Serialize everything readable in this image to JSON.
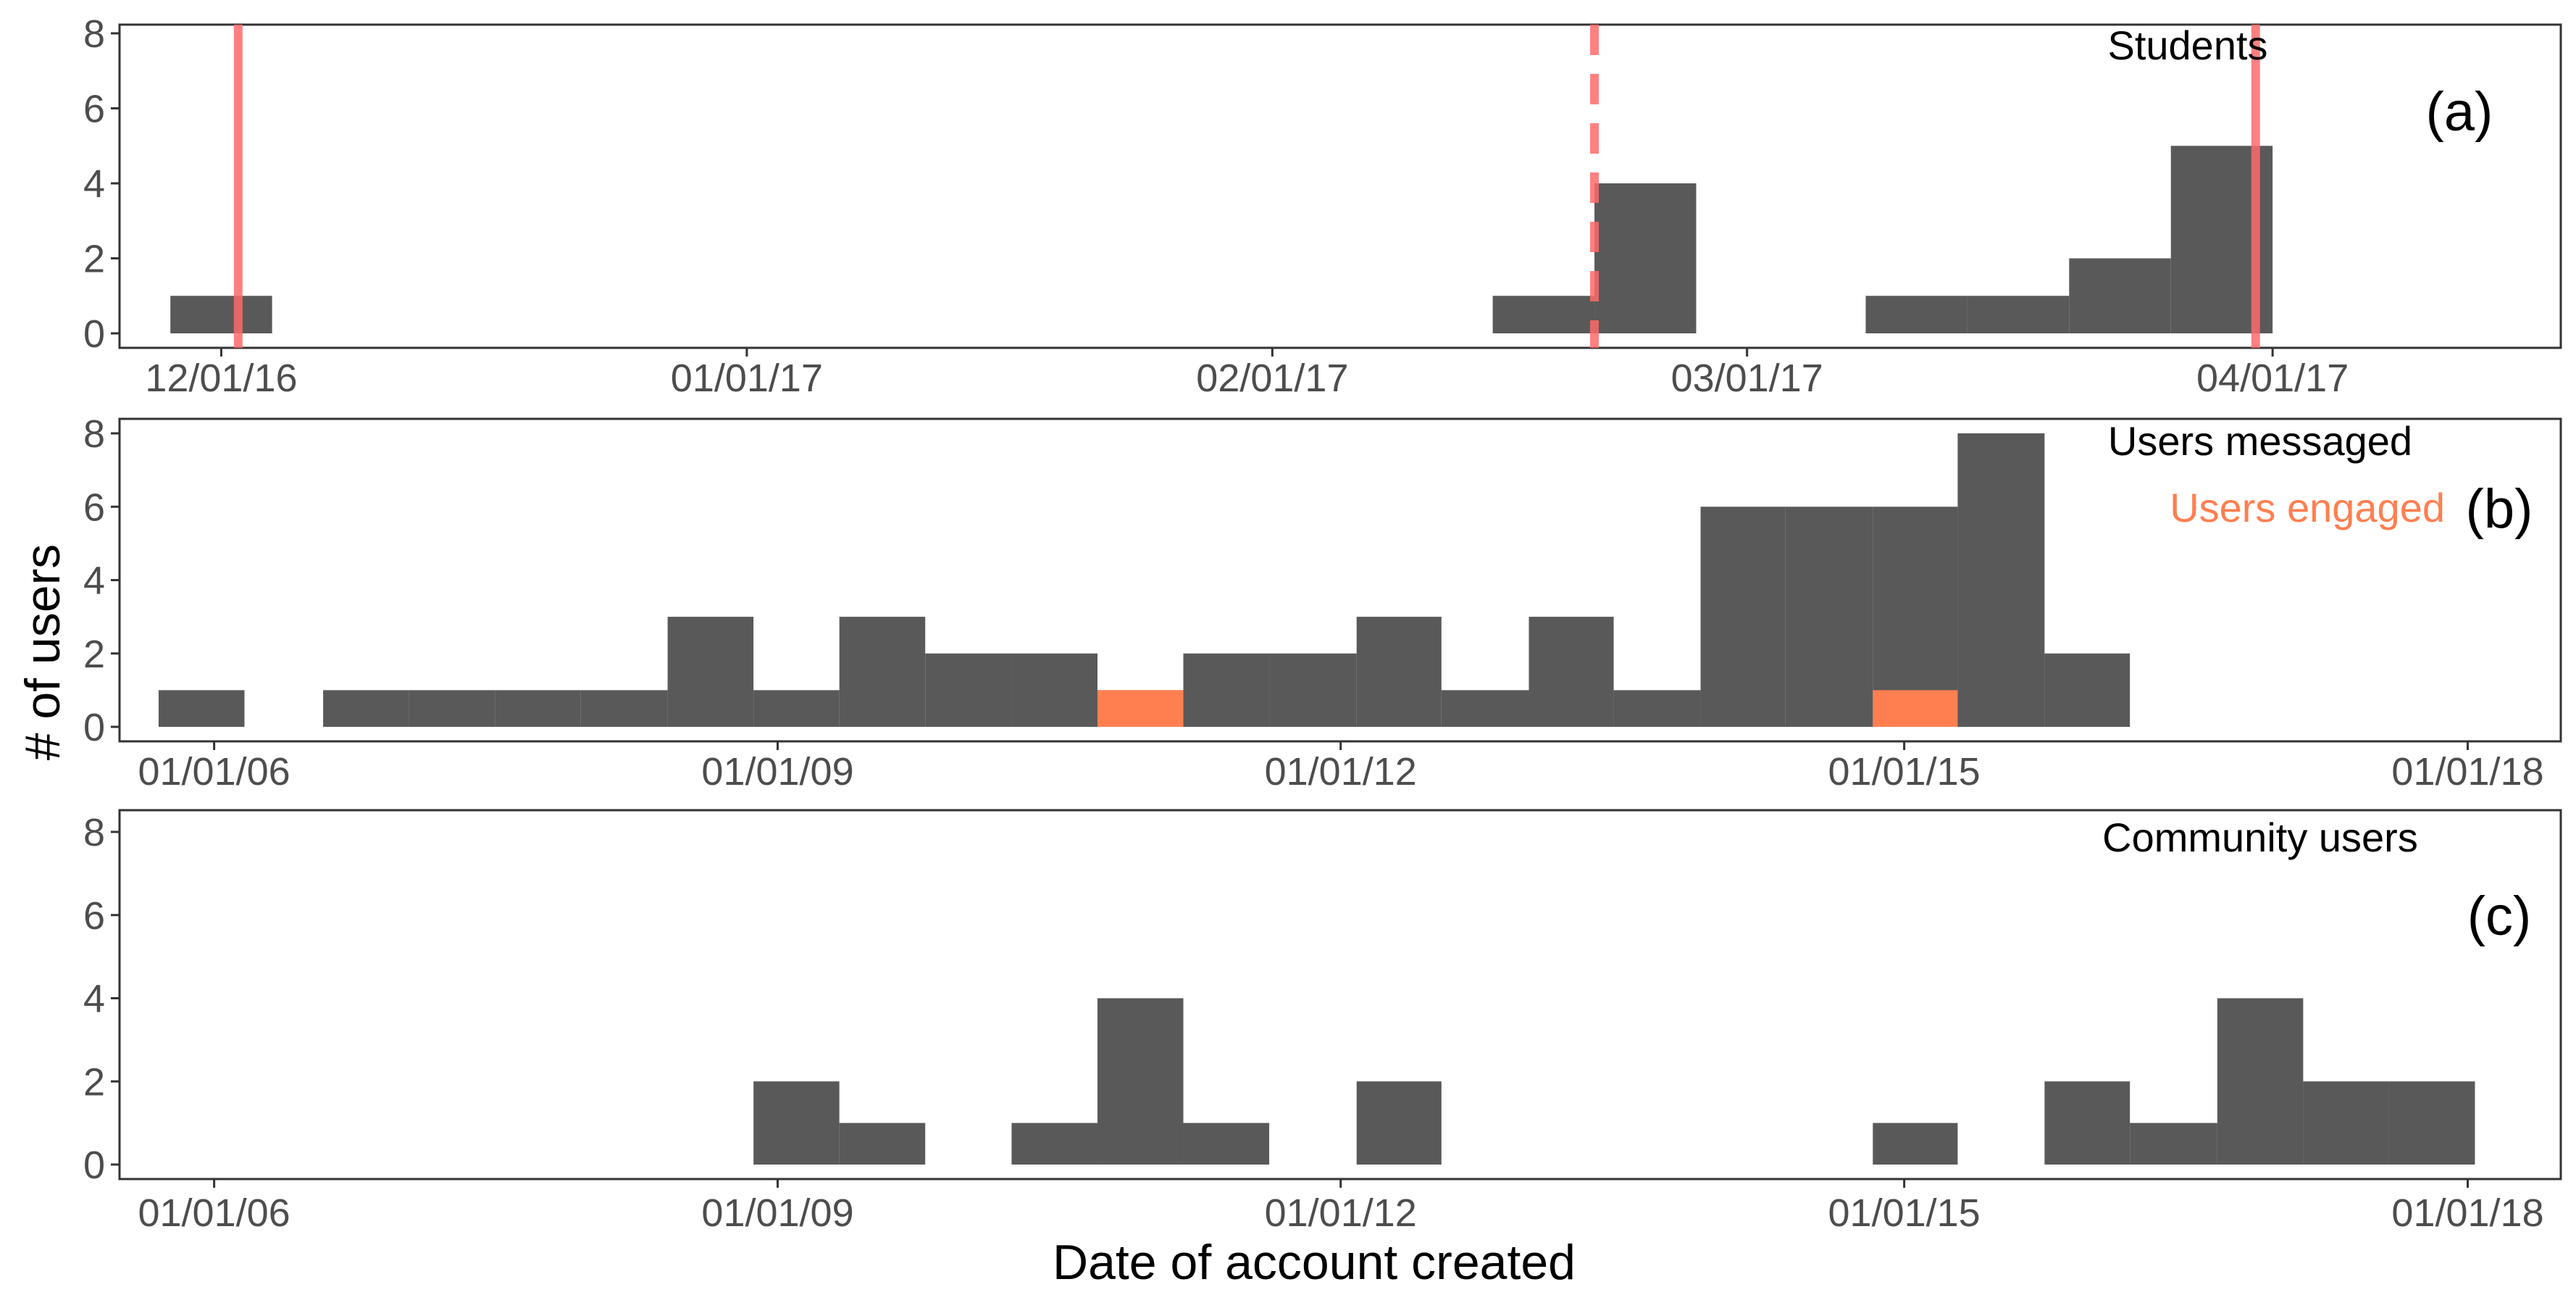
{
  "figure": {
    "ylabel": "# of users",
    "xlabel": "Date of account created"
  },
  "colors": {
    "bar": "#595959",
    "engaged": "#ff7f50",
    "vline": "#ff6a6a",
    "axis_text": "#4d4d4d",
    "frame": "#333333"
  },
  "chart_data": [
    {
      "type": "bar",
      "panel_tag": "(a)",
      "legend": [
        "Students"
      ],
      "x_axis": "date",
      "xlim": [
        "2016-11-25",
        "2017-04-18"
      ],
      "ylim": [
        0,
        8
      ],
      "y_ticks": [
        0,
        2,
        4,
        6,
        8
      ],
      "x_ticks": [
        {
          "date": "2016-12-01",
          "label": "12/01/16"
        },
        {
          "date": "2017-01-01",
          "label": "01/01/17"
        },
        {
          "date": "2017-02-01",
          "label": "02/01/17"
        },
        {
          "date": "2017-03-01",
          "label": "03/01/17"
        },
        {
          "date": "2017-04-01",
          "label": "04/01/17"
        }
      ],
      "series": [
        {
          "bins": [
            {
              "start": "2016-11-28",
              "end": "2016-12-04",
              "value": 1
            },
            {
              "start": "2017-02-14",
              "end": "2017-02-20",
              "value": 1
            },
            {
              "start": "2017-02-20",
              "end": "2017-02-26",
              "value": 4
            },
            {
              "start": "2017-03-08",
              "end": "2017-03-14",
              "value": 1
            },
            {
              "start": "2017-03-14",
              "end": "2017-03-20",
              "value": 1
            },
            {
              "start": "2017-03-20",
              "end": "2017-03-26",
              "value": 2
            },
            {
              "start": "2017-03-26",
              "end": "2017-04-01",
              "value": 5
            }
          ]
        }
      ],
      "reference_lines": [
        {
          "date": "2016-12-02",
          "style": "solid"
        },
        {
          "date": "2017-02-20",
          "style": "dashed"
        },
        {
          "date": "2017-03-31",
          "style": "solid"
        }
      ]
    },
    {
      "type": "bar",
      "panel_tag": "(b)",
      "legend": [
        "Users messaged",
        "Users engaged"
      ],
      "x_axis": "date",
      "xlim": [
        "2005-07-01",
        "2018-07-01"
      ],
      "ylim": [
        0,
        8
      ],
      "y_ticks": [
        0,
        2,
        4,
        6,
        8
      ],
      "x_ticks": [
        {
          "date": "2006-01-01",
          "label": "01/01/06"
        },
        {
          "date": "2009-01-01",
          "label": "01/01/09"
        },
        {
          "date": "2012-01-01",
          "label": "01/01/12"
        },
        {
          "date": "2015-01-01",
          "label": "01/01/15"
        },
        {
          "date": "2018-01-01",
          "label": "01/01/18"
        }
      ],
      "series": [
        {
          "name": "Users messaged",
          "bins": [
            {
              "start": "2005-09-15",
              "end": "2006-03-01",
              "value": 1
            },
            {
              "start": "2006-08-01",
              "end": "2007-01-15",
              "value": 1
            },
            {
              "start": "2007-01-15",
              "end": "2007-07-01",
              "value": 1
            },
            {
              "start": "2007-07-01",
              "end": "2007-12-15",
              "value": 1
            },
            {
              "start": "2007-12-15",
              "end": "2008-06-01",
              "value": 1
            },
            {
              "start": "2008-06-01",
              "end": "2008-11-15",
              "value": 3
            },
            {
              "start": "2008-11-15",
              "end": "2009-05-01",
              "value": 1
            },
            {
              "start": "2009-05-01",
              "end": "2009-10-15",
              "value": 3
            },
            {
              "start": "2009-10-15",
              "end": "2010-04-01",
              "value": 2
            },
            {
              "start": "2010-04-01",
              "end": "2010-09-15",
              "value": 2
            },
            {
              "start": "2010-09-15",
              "end": "2011-03-01",
              "value": 1
            },
            {
              "start": "2011-03-01",
              "end": "2011-08-15",
              "value": 2
            },
            {
              "start": "2011-08-15",
              "end": "2012-02-01",
              "value": 2
            },
            {
              "start": "2012-02-01",
              "end": "2012-07-15",
              "value": 3
            },
            {
              "start": "2012-07-15",
              "end": "2013-01-01",
              "value": 1
            },
            {
              "start": "2013-01-01",
              "end": "2013-06-15",
              "value": 3
            },
            {
              "start": "2013-06-15",
              "end": "2013-12-01",
              "value": 1
            },
            {
              "start": "2013-12-01",
              "end": "2014-05-15",
              "value": 6
            },
            {
              "start": "2014-05-15",
              "end": "2014-11-01",
              "value": 6
            },
            {
              "start": "2014-11-01",
              "end": "2015-04-15",
              "value": 6
            },
            {
              "start": "2015-04-15",
              "end": "2015-10-01",
              "value": 8
            },
            {
              "start": "2015-10-01",
              "end": "2016-03-15",
              "value": 2
            }
          ]
        },
        {
          "name": "Users engaged",
          "bins": [
            {
              "start": "2010-09-15",
              "end": "2011-03-01",
              "value": 1
            },
            {
              "start": "2014-11-01",
              "end": "2015-04-15",
              "value": 1
            }
          ]
        }
      ]
    },
    {
      "type": "bar",
      "panel_tag": "(c)",
      "legend": [
        "Community users"
      ],
      "x_axis": "date",
      "xlim": [
        "2005-07-01",
        "2018-07-01"
      ],
      "ylim": [
        0,
        8
      ],
      "y_ticks": [
        0,
        2,
        4,
        6,
        8
      ],
      "x_ticks": [
        {
          "date": "2006-01-01",
          "label": "01/01/06"
        },
        {
          "date": "2009-01-01",
          "label": "01/01/09"
        },
        {
          "date": "2012-01-01",
          "label": "01/01/12"
        },
        {
          "date": "2015-01-01",
          "label": "01/01/15"
        },
        {
          "date": "2018-01-01",
          "label": "01/01/18"
        }
      ],
      "series": [
        {
          "bins": [
            {
              "start": "2008-11-15",
              "end": "2009-05-01",
              "value": 2
            },
            {
              "start": "2009-05-01",
              "end": "2009-10-15",
              "value": 1
            },
            {
              "start": "2010-04-01",
              "end": "2010-09-15",
              "value": 1
            },
            {
              "start": "2010-09-15",
              "end": "2011-03-01",
              "value": 4
            },
            {
              "start": "2011-03-01",
              "end": "2011-08-15",
              "value": 1
            },
            {
              "start": "2012-02-01",
              "end": "2012-07-15",
              "value": 2
            },
            {
              "start": "2014-11-01",
              "end": "2015-04-15",
              "value": 1
            },
            {
              "start": "2015-10-01",
              "end": "2016-03-15",
              "value": 2
            },
            {
              "start": "2016-03-15",
              "end": "2016-09-01",
              "value": 1
            },
            {
              "start": "2016-09-01",
              "end": "2017-02-15",
              "value": 4
            },
            {
              "start": "2017-02-15",
              "end": "2017-08-01",
              "value": 2
            },
            {
              "start": "2017-08-01",
              "end": "2018-01-15",
              "value": 2
            }
          ]
        }
      ]
    }
  ]
}
